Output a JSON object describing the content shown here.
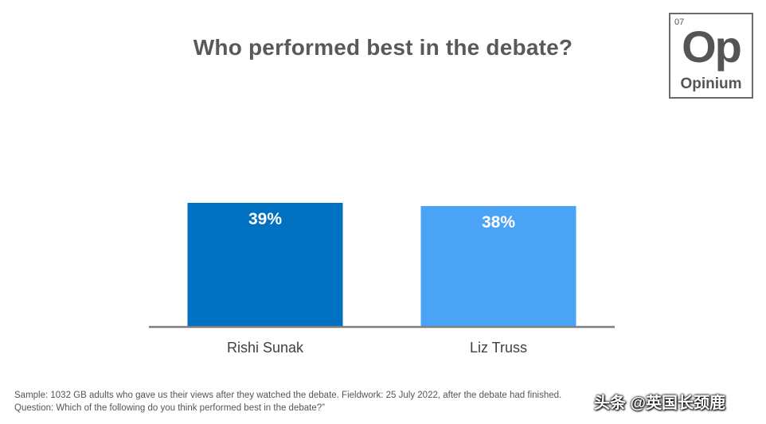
{
  "chart_data": {
    "type": "bar",
    "title": "Who performed best in the debate?",
    "categories": [
      "Rishi Sunak",
      "Liz Truss"
    ],
    "values": [
      39,
      38
    ],
    "data_labels": [
      "39%",
      "38%"
    ],
    "unit": "%",
    "colors": [
      "#0070c0",
      "#4aa3f5"
    ],
    "ylim": [
      0,
      40
    ],
    "grid": false,
    "legend": "none",
    "xlabel": "",
    "ylabel": ""
  },
  "logo": {
    "number": "07",
    "symbol": "Op",
    "name": "Opinium"
  },
  "footnote": "Sample: 1032 GB adults who gave us their views after they watched the debate. Fieldwork: 25 July 2022, after the debate had finished. Question: Which of the following do you think performed best in the debate?”",
  "watermark": "头条 @英国长颈鹿"
}
